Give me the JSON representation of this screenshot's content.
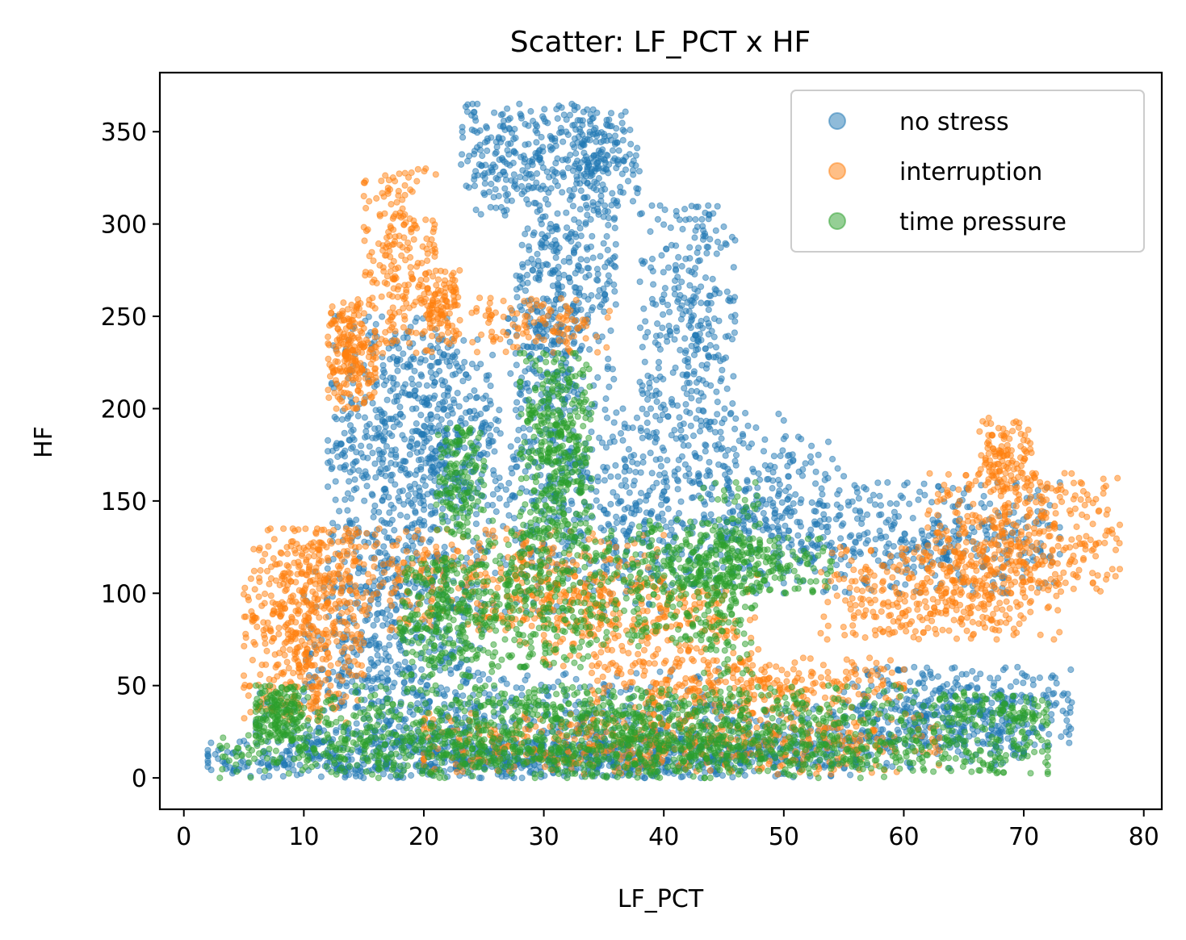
{
  "chart_data": {
    "type": "scatter",
    "title": "Scatter: LF_PCT x HF",
    "xlabel": "LF_PCT",
    "ylabel": "HF",
    "xlim": [
      -2,
      81.5
    ],
    "ylim": [
      -17,
      382
    ],
    "xticks": [
      0,
      10,
      20,
      30,
      40,
      50,
      60,
      70,
      80
    ],
    "yticks": [
      0,
      50,
      100,
      150,
      200,
      250,
      300,
      350
    ],
    "grid": false,
    "legend_position": "top-right",
    "series": [
      {
        "name": "no stress",
        "color": "#1f77b4",
        "opacity": 0.5,
        "clusters": [
          {
            "x": [
              2,
              56
            ],
            "y": [
              0,
              20
            ],
            "n": 700
          },
          {
            "x": [
              6,
              45
            ],
            "y": [
              0,
              60
            ],
            "n": 450
          },
          {
            "x": [
              10,
              25
            ],
            "y": [
              20,
              120
            ],
            "n": 450
          },
          {
            "x": [
              12,
              22
            ],
            "y": [
              100,
              250
            ],
            "n": 500
          },
          {
            "x": [
              18,
              26
            ],
            "y": [
              150,
              240
            ],
            "n": 220
          },
          {
            "x": [
              20,
              40
            ],
            "y": [
              90,
              200
            ],
            "n": 420
          },
          {
            "x": [
              23,
              30
            ],
            "y": [
              300,
              365
            ],
            "n": 170
          },
          {
            "x": [
              28,
              36
            ],
            "y": [
              200,
              365
            ],
            "n": 380
          },
          {
            "x": [
              27,
              33
            ],
            "y": [
              150,
              300
            ],
            "n": 220
          },
          {
            "x": [
              32,
              38
            ],
            "y": [
              310,
              362
            ],
            "n": 150
          },
          {
            "x": [
              38,
              46
            ],
            "y": [
              180,
              310
            ],
            "n": 320
          },
          {
            "x": [
              35,
              50
            ],
            "y": [
              100,
              200
            ],
            "n": 330
          },
          {
            "x": [
              45,
              55
            ],
            "y": [
              110,
              185
            ],
            "n": 180
          },
          {
            "x": [
              50,
              73
            ],
            "y": [
              100,
              160
            ],
            "n": 380
          },
          {
            "x": [
              55,
              74
            ],
            "y": [
              15,
              60
            ],
            "n": 360
          },
          {
            "x": [
              30,
              70
            ],
            "y": [
              5,
              40
            ],
            "n": 420
          }
        ]
      },
      {
        "name": "interruption",
        "color": "#ff7f0e",
        "opacity": 0.5,
        "clusters": [
          {
            "x": [
              5,
              15
            ],
            "y": [
              30,
              135
            ],
            "n": 520
          },
          {
            "x": [
              12,
              16
            ],
            "y": [
              200,
              260
            ],
            "n": 220
          },
          {
            "x": [
              15,
              21
            ],
            "y": [
              230,
              330
            ],
            "n": 220
          },
          {
            "x": [
              20,
              23
            ],
            "y": [
              235,
              275
            ],
            "n": 110
          },
          {
            "x": [
              24,
              36
            ],
            "y": [
              230,
              260
            ],
            "n": 110
          },
          {
            "x": [
              10,
              40
            ],
            "y": [
              80,
              135
            ],
            "n": 420
          },
          {
            "x": [
              28,
              48
            ],
            "y": [
              60,
              110
            ],
            "n": 300
          },
          {
            "x": [
              34,
              60
            ],
            "y": [
              35,
              65
            ],
            "n": 300
          },
          {
            "x": [
              20,
              63
            ],
            "y": [
              2,
              35
            ],
            "n": 500
          },
          {
            "x": [
              53,
              73
            ],
            "y": [
              75,
              125
            ],
            "n": 380
          },
          {
            "x": [
              62,
              78
            ],
            "y": [
              100,
              165
            ],
            "n": 380
          },
          {
            "x": [
              66,
              71
            ],
            "y": [
              155,
              195
            ],
            "n": 120
          }
        ]
      },
      {
        "name": "time pressure",
        "color": "#2ca02c",
        "opacity": 0.5,
        "clusters": [
          {
            "x": [
              3,
              72
            ],
            "y": [
              0,
              25
            ],
            "n": 900
          },
          {
            "x": [
              6,
              65
            ],
            "y": [
              15,
              50
            ],
            "n": 800
          },
          {
            "x": [
              6,
              10
            ],
            "y": [
              20,
              50
            ],
            "n": 150
          },
          {
            "x": [
              18,
              26
            ],
            "y": [
              55,
              120
            ],
            "n": 300
          },
          {
            "x": [
              21,
              25
            ],
            "y": [
              130,
              190
            ],
            "n": 150
          },
          {
            "x": [
              28,
              34
            ],
            "y": [
              130,
              230
            ],
            "n": 380
          },
          {
            "x": [
              25,
              36
            ],
            "y": [
              60,
              140
            ],
            "n": 320
          },
          {
            "x": [
              36,
              46
            ],
            "y": [
              70,
              140
            ],
            "n": 240
          },
          {
            "x": [
              40,
              54
            ],
            "y": [
              100,
              130
            ],
            "n": 200
          },
          {
            "x": [
              43,
              48
            ],
            "y": [
              40,
              160
            ],
            "n": 150
          },
          {
            "x": [
              63,
              72
            ],
            "y": [
              25,
              45
            ],
            "n": 120
          }
        ]
      }
    ]
  }
}
